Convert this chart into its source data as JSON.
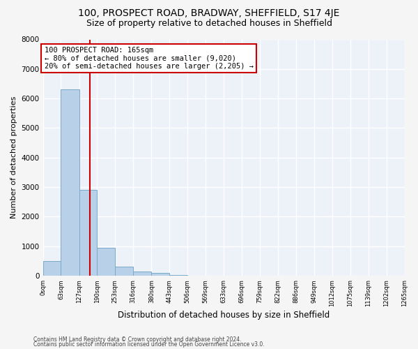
{
  "title": "100, PROSPECT ROAD, BRADWAY, SHEFFIELD, S17 4JE",
  "subtitle": "Size of property relative to detached houses in Sheffield",
  "xlabel": "Distribution of detached houses by size in Sheffield",
  "ylabel": "Number of detached properties",
  "footnote1": "Contains HM Land Registry data © Crown copyright and database right 2024.",
  "footnote2": "Contains public sector information licensed under the Open Government Licence v3.0.",
  "bin_edges": [
    0,
    63,
    127,
    190,
    253,
    316,
    380,
    443,
    506,
    569,
    633,
    696,
    759,
    822,
    886,
    949,
    1012,
    1075,
    1139,
    1202,
    1265
  ],
  "bar_heights": [
    500,
    6300,
    2900,
    950,
    320,
    150,
    90,
    20,
    10,
    5,
    5,
    3,
    3,
    3,
    3,
    2,
    2,
    2,
    2,
    2
  ],
  "bar_color": "#b8d0e8",
  "bar_edge_color": "#7aaac8",
  "property_size": 165,
  "vline_color": "#cc0000",
  "ylim": [
    0,
    8000
  ],
  "annotation_line1": "100 PROSPECT ROAD: 165sqm",
  "annotation_line2": "← 80% of detached houses are smaller (9,020)",
  "annotation_line3": "20% of semi-detached houses are larger (2,205) →",
  "annotation_box_color": "#cc0000",
  "background_color": "#edf2f9",
  "grid_color": "#ffffff",
  "title_fontsize": 10,
  "subtitle_fontsize": 9,
  "xlabel_fontsize": 8.5,
  "ylabel_fontsize": 8,
  "annotation_fontsize": 7.5
}
